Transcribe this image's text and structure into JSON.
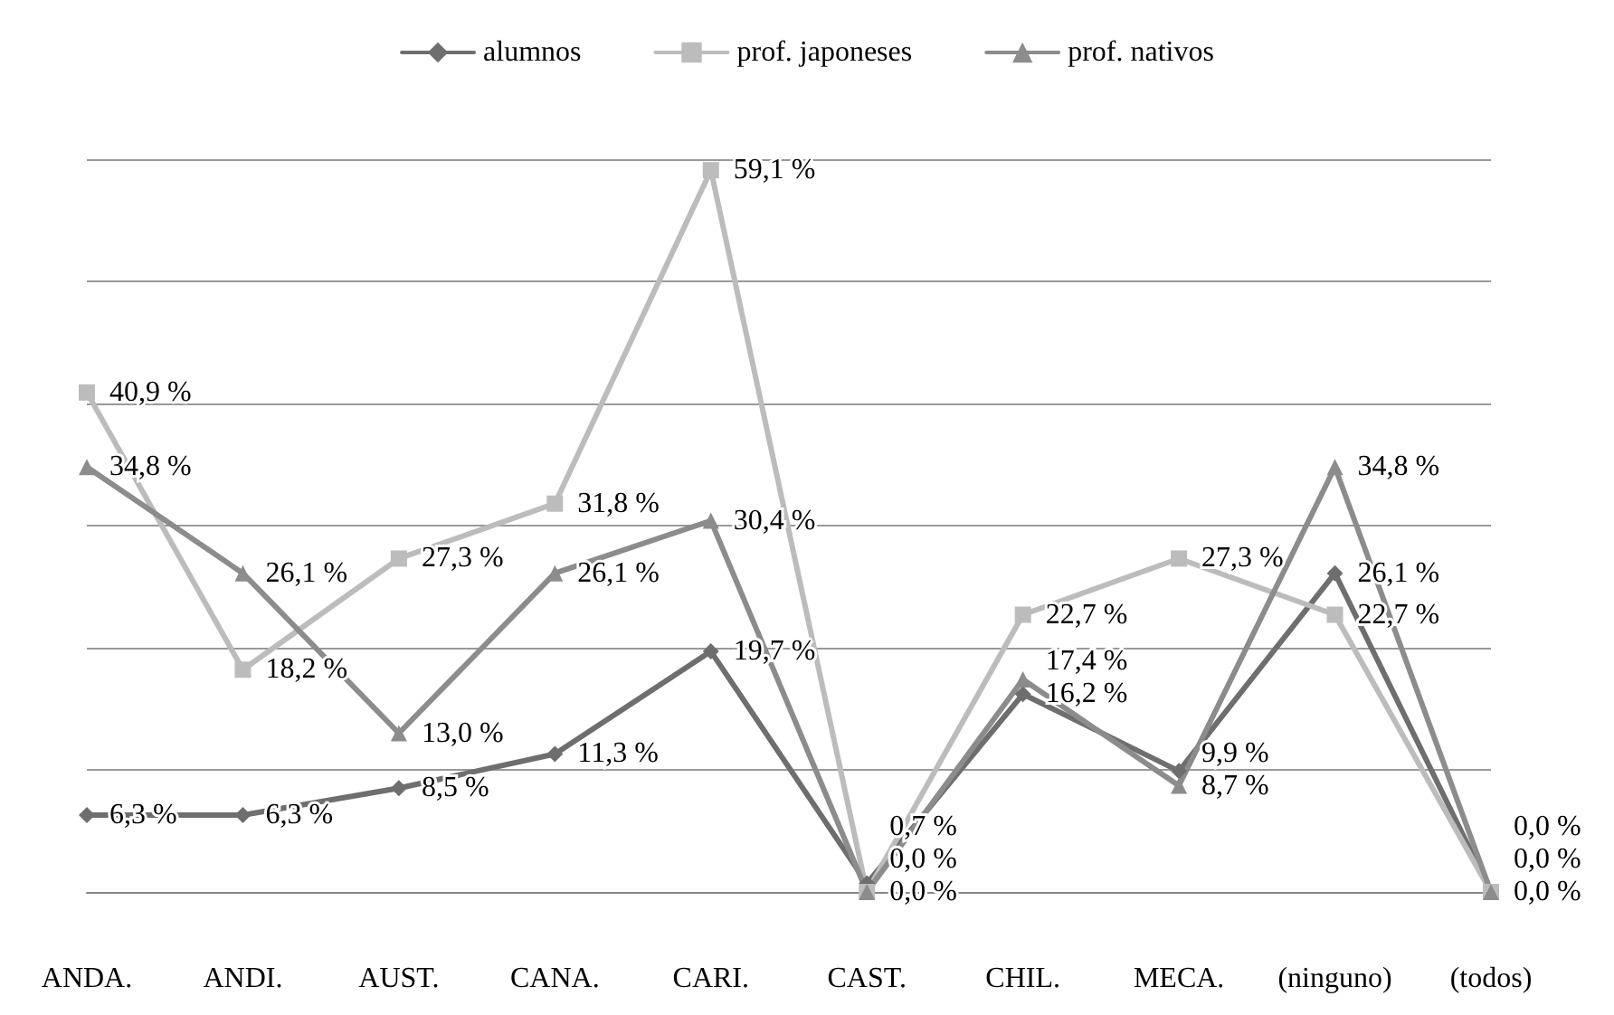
{
  "chart_data": {
    "type": "line",
    "categories": [
      "ANDA.",
      "ANDI.",
      "AUST.",
      "CANA.",
      "CARI.",
      "CAST.",
      "CHIL.",
      "MECA.",
      "(ninguno)",
      "(todos)"
    ],
    "series": [
      {
        "name": "alumnos",
        "color": "#6e6e6e",
        "marker": "diamond",
        "values": [
          6.3,
          6.3,
          8.5,
          11.3,
          19.7,
          0.7,
          16.2,
          9.9,
          26.1,
          0.0
        ],
        "value_labels": [
          "6,3 %",
          "6,3 %",
          "8,5 %",
          "11,3 %",
          "19,7 %",
          "0,7 %",
          "16,2 %",
          "9,9 %",
          "26,1 %",
          "0,0 %"
        ]
      },
      {
        "name": "prof. japoneses",
        "color": "#bcbcbc",
        "marker": "square",
        "values": [
          40.9,
          18.2,
          27.3,
          31.8,
          59.1,
          0.0,
          22.7,
          27.3,
          22.7,
          0.0
        ],
        "value_labels": [
          "40,9 %",
          "18,2 %",
          "27,3 %",
          "31,8 %",
          "59,1 %",
          "0,0 %",
          "22,7 %",
          "27,3 %",
          "22,7 %",
          "0,0 %"
        ]
      },
      {
        "name": "prof. nativos",
        "color": "#8c8c8c",
        "marker": "triangle",
        "values": [
          34.8,
          26.1,
          13.0,
          26.1,
          30.4,
          0.0,
          17.4,
          8.7,
          34.8,
          0.0
        ],
        "value_labels": [
          "34,8 %",
          "26,1 %",
          "13,0 %",
          "26,1 %",
          "30,4 %",
          "0,0 %",
          "17,4 %",
          "8,7 %",
          "34,8 %",
          "0,0 %"
        ]
      }
    ],
    "ylim": [
      0,
      60
    ],
    "yticks": [
      {
        "value": 0,
        "label": null
      },
      {
        "value": 10,
        "label": null
      },
      {
        "value": 20,
        "label": null
      },
      {
        "value": 30,
        "label": null
      },
      {
        "value": 40,
        "label": null
      },
      {
        "value": 50,
        "label": null
      },
      {
        "value": 60,
        "label": null
      }
    ],
    "tick_labels": "x",
    "grid": "y",
    "legend": "top",
    "line_style": "solid"
  }
}
